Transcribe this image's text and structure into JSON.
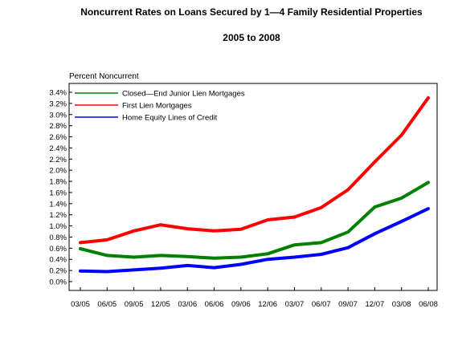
{
  "chart_data": {
    "type": "line",
    "title": "Noncurrent Rates on Loans Secured by 1—4 Family Residential Properties",
    "subtitle": "2005 to 2008",
    "ylabel": "Percent Noncurrent",
    "ylim": [
      0,
      3.4
    ],
    "yticks": [
      "0.0%",
      "0.2%",
      "0.4%",
      "0.6%",
      "0.8%",
      "1.0%",
      "1.2%",
      "1.4%",
      "1.6%",
      "1.8%",
      "2.0%",
      "2.2%",
      "2.4%",
      "2.6%",
      "2.8%",
      "3.0%",
      "3.2%",
      "3.4%"
    ],
    "categories": [
      "03/05",
      "06/05",
      "09/05",
      "12/05",
      "03/06",
      "06/06",
      "09/06",
      "12/06",
      "03/07",
      "06/07",
      "09/07",
      "12/07",
      "03/08",
      "06/08"
    ],
    "legend_position": "top-left",
    "series": [
      {
        "name": "Closed—End Junior Lien Mortgages",
        "color": "#008000",
        "values": [
          0.59,
          0.47,
          0.44,
          0.47,
          0.45,
          0.42,
          0.44,
          0.5,
          0.66,
          0.7,
          0.89,
          1.34,
          1.5,
          1.78
        ]
      },
      {
        "name": "First Lien Mortgages",
        "color": "#ff0000",
        "values": [
          0.7,
          0.75,
          0.91,
          1.02,
          0.95,
          0.91,
          0.94,
          1.11,
          1.16,
          1.33,
          1.65,
          2.15,
          2.63,
          3.3
        ]
      },
      {
        "name": "Home Equity Lines of Credit",
        "color": "#0000ff",
        "values": [
          0.19,
          0.18,
          0.21,
          0.24,
          0.29,
          0.25,
          0.31,
          0.4,
          0.44,
          0.49,
          0.61,
          0.86,
          1.08,
          1.31
        ]
      }
    ]
  }
}
